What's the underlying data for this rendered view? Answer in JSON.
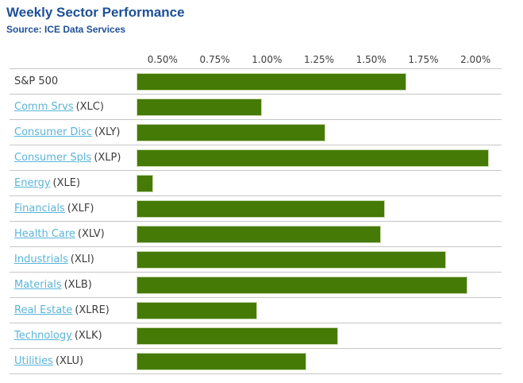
{
  "page": {
    "title": "Weekly Sector Performance",
    "source": "Source: ICE Data Services"
  },
  "colors": {
    "title_blue": "#1e5096",
    "link_blue": "#5ab4d8",
    "bar_green": "#447a05",
    "bar_border": "#c9d8ad",
    "grid_gray": "#c6c6c6",
    "text_dark": "#3c3c3c"
  },
  "chart_data": {
    "type": "bar",
    "orientation": "horizontal",
    "title": "Weekly Sector Performance",
    "xlabel": "",
    "ylabel": "",
    "unit": "%",
    "axis": {
      "position": "top",
      "ticks": [
        "0.50%",
        "0.75%",
        "1.00%",
        "1.25%",
        "1.50%",
        "1.75%",
        "2.00%"
      ],
      "min": 0.25,
      "max": 1.97,
      "grid": false,
      "legend": "none"
    },
    "rows": [
      {
        "label": "S&P 500",
        "ticker": "",
        "is_link": false,
        "value": 1.52
      },
      {
        "label": "Comm Srvs",
        "ticker": "(XLC)",
        "is_link": true,
        "value": 0.84
      },
      {
        "label": "Consumer Disc",
        "ticker": "(XLY)",
        "is_link": true,
        "value": 1.14
      },
      {
        "label": "Consumer Spls",
        "ticker": "(XLP)",
        "is_link": true,
        "value": 1.91
      },
      {
        "label": "Energy",
        "ticker": "(XLE)",
        "is_link": true,
        "value": 0.33
      },
      {
        "label": "Financials",
        "ticker": "(XLF)",
        "is_link": true,
        "value": 1.42
      },
      {
        "label": "Health Care",
        "ticker": "(XLV)",
        "is_link": true,
        "value": 1.4
      },
      {
        "label": "Industrials",
        "ticker": "(XLI)",
        "is_link": true,
        "value": 1.71
      },
      {
        "label": "Materials",
        "ticker": "(XLB)",
        "is_link": true,
        "value": 1.81
      },
      {
        "label": "Real Estate",
        "ticker": "(XLRE)",
        "is_link": true,
        "value": 0.82
      },
      {
        "label": "Technology",
        "ticker": "(XLK)",
        "is_link": true,
        "value": 1.2
      },
      {
        "label": "Utilities",
        "ticker": "(XLU)",
        "is_link": true,
        "value": 1.05
      }
    ]
  }
}
